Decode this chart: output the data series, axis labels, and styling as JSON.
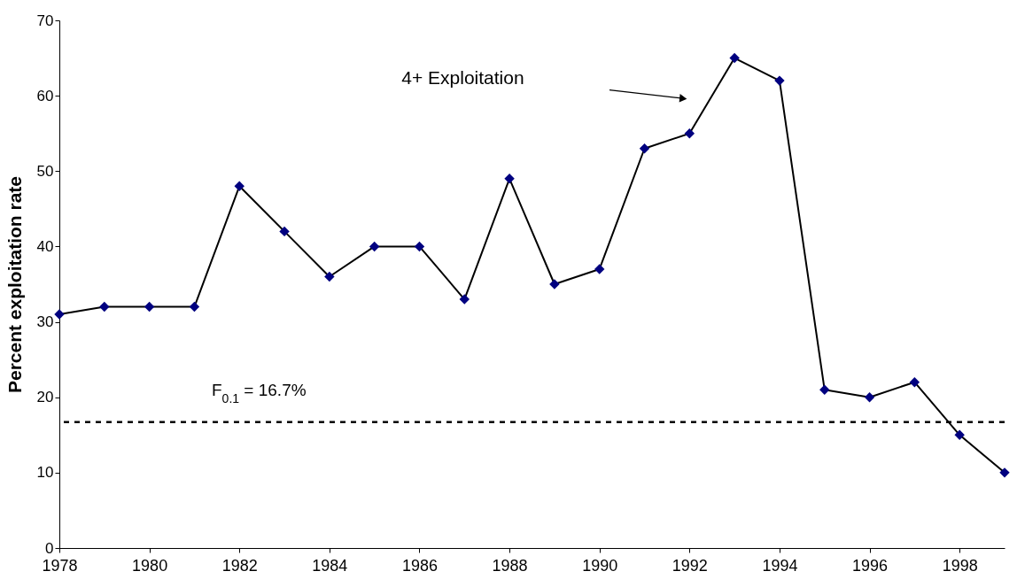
{
  "chart_data": {
    "type": "line",
    "ylabel": "Percent exploitation rate",
    "x": [
      1978,
      1979,
      1980,
      1981,
      1982,
      1983,
      1984,
      1985,
      1986,
      1987,
      1988,
      1989,
      1990,
      1991,
      1992,
      1993,
      1994,
      1995,
      1996,
      1997,
      1998,
      1999
    ],
    "series": [
      {
        "color": "#000080",
        "values": [
          31,
          32,
          32,
          32,
          48,
          42,
          36,
          40,
          40,
          33,
          49,
          35,
          37,
          53,
          55,
          65,
          62,
          21,
          20,
          22,
          15,
          10
        ]
      }
    ],
    "xlim": [
      1978,
      1999
    ],
    "xticks": [
      1978,
      1980,
      1982,
      1984,
      1986,
      1988,
      1990,
      1992,
      1994,
      1996,
      1998
    ],
    "ylim": [
      0,
      70
    ],
    "yticks": [
      0,
      10,
      20,
      30,
      40,
      50,
      60,
      70
    ],
    "grid": false,
    "marker": "diamond",
    "line_style": "solid",
    "ref_lines": [
      {
        "axis": "y",
        "value": 16.7,
        "label": "F$_{0.1}$ = 16.7%",
        "line_style": "dashed"
      }
    ],
    "annotations": [
      "4+ Exploitation"
    ]
  }
}
